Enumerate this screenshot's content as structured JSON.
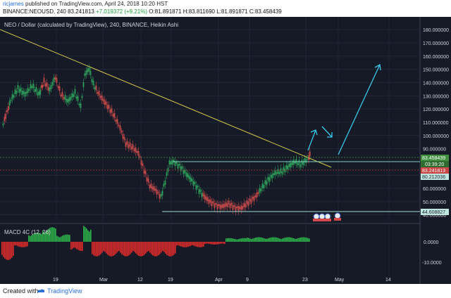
{
  "header": {
    "author": "ricjames",
    "published_text": "published on TradingView.com, April 24, 2018 10:20 HST",
    "ohlc_prefix": "BINANCE:NEOUSD, 240  83.241813",
    "change": "+7.019372 (+9.21%)",
    "ohlc_rest": "O:81.891871  H:83.811690  L:81.891871  C:83.458439"
  },
  "chart": {
    "title": "NEO / Dollar (calculated by TradingView), 240, BINANCE, Heikin Ashi",
    "price_labels": [
      "180.000000",
      "170.000000",
      "160.000000",
      "150.000000",
      "140.000000",
      "130.000000",
      "120.000000",
      "110.000000",
      "100.000000",
      "90.000000",
      "70.000000",
      "60.000000",
      "50.000000",
      "40.000000"
    ],
    "tags": {
      "last_price": "83.458439",
      "countdown": "03:39:20",
      "prev_close": "83.241813",
      "level_high": "80.212036",
      "level_low": "44.608827"
    },
    "x_labels": [
      "19",
      "Mar",
      "12",
      "19",
      "Apr",
      "9",
      "23",
      "May",
      "14"
    ],
    "macd_title": "MACD 4C (12, 26)",
    "macd_labels": [
      "0.0000",
      "-10.0000"
    ],
    "colors": {
      "background": "#151a26",
      "up": "#26a69a",
      "down": "#ef5350",
      "trendline": "#d4c94a",
      "arrow": "#39c7e8",
      "level": "#7fd1c4"
    }
  },
  "footer": {
    "created_with": "Created with",
    "brand": "TradingView"
  }
}
